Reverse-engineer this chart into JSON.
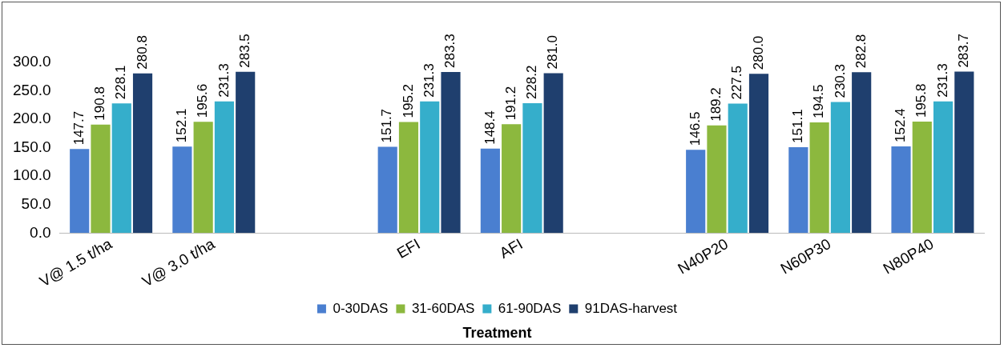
{
  "chart_data": {
    "type": "bar",
    "xlabel": "Treatment",
    "categories": [
      "V@ 1.5 t/ha",
      "V@ 3.0 t/ha",
      null,
      "EFI",
      "AFI",
      null,
      "N40P20",
      "N60P30",
      "N80P40"
    ],
    "series": [
      {
        "name": "0-30DAS",
        "color": "#4a7fd0",
        "values": [
          147.7,
          152.1,
          null,
          151.7,
          148.4,
          null,
          146.5,
          151.1,
          152.4
        ],
        "value_labels": [
          "147.7",
          "152.1",
          null,
          "151.7",
          "148.4",
          null,
          "146.5",
          "151.1",
          "152.4"
        ]
      },
      {
        "name": "31-60DAS",
        "color": "#8cb83e",
        "values": [
          190.8,
          195.6,
          null,
          195.2,
          191.2,
          null,
          189.2,
          194.5,
          195.8
        ],
        "value_labels": [
          "190.8",
          "195.6",
          null,
          "195.2",
          "191.2",
          null,
          "189.2",
          "194.5",
          "195.8"
        ]
      },
      {
        "name": "61-90DAS",
        "color": "#35aecb",
        "values": [
          228.1,
          231.3,
          null,
          231.3,
          228.2,
          null,
          227.5,
          230.3,
          231.3
        ],
        "value_labels": [
          "228.1",
          "231.3",
          null,
          "231.3",
          "228.2",
          null,
          "227.5",
          "230.3",
          "231.3"
        ]
      },
      {
        "name": "91DAS-harvest",
        "color": "#1f3f6e",
        "values": [
          280.8,
          283.5,
          null,
          283.3,
          281.0,
          null,
          280.0,
          282.8,
          283.7
        ],
        "value_labels": [
          "280.8",
          "283.5",
          null,
          "283.3",
          "281.0",
          null,
          "280.0",
          "282.8",
          "283.7"
        ]
      }
    ],
    "ylim": [
      0,
      300
    ],
    "yticks": [
      {
        "value": 0,
        "label": "0.0"
      },
      {
        "value": 50,
        "label": "50.0"
      },
      {
        "value": 100,
        "label": "100.0"
      },
      {
        "value": 150,
        "label": "150.0"
      },
      {
        "value": 200,
        "label": "200.0"
      },
      {
        "value": 250,
        "label": "250.0"
      },
      {
        "value": 300,
        "label": "300.0"
      }
    ],
    "grid": false,
    "legend": "bottom"
  }
}
